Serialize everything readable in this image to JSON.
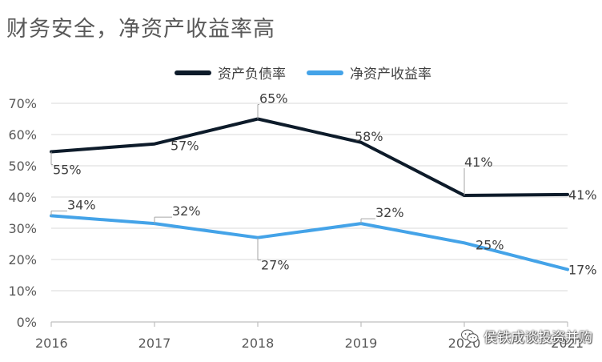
{
  "chart_data": {
    "type": "line",
    "title": "财务安全，净资产收益率高",
    "categories": [
      "2016",
      "2017",
      "2018",
      "2019",
      "2020",
      "2021"
    ],
    "series": [
      {
        "name": "资产负债率",
        "color": "#0d1b2a",
        "values": [
          54.5,
          57,
          65,
          57.5,
          40.5,
          40.8
        ],
        "labels": [
          "55%",
          "57%",
          "65%",
          "58%",
          "41%",
          "41%"
        ]
      },
      {
        "name": "净资产收益率",
        "color": "#44a3e8",
        "values": [
          34,
          31.5,
          27,
          31.5,
          25.3,
          16.8
        ],
        "labels": [
          "34%",
          "32%",
          "27%",
          "32%",
          "25%",
          "17%"
        ]
      }
    ],
    "y_ticks": [
      "0%",
      "10%",
      "20%",
      "30%",
      "40%",
      "50%",
      "60%",
      "70%"
    ],
    "ylim": [
      0,
      70
    ],
    "grid": true,
    "legend": "top-center"
  },
  "watermark": {
    "icon": "wechat-icon",
    "text": "侯铁成谈投资并购"
  }
}
